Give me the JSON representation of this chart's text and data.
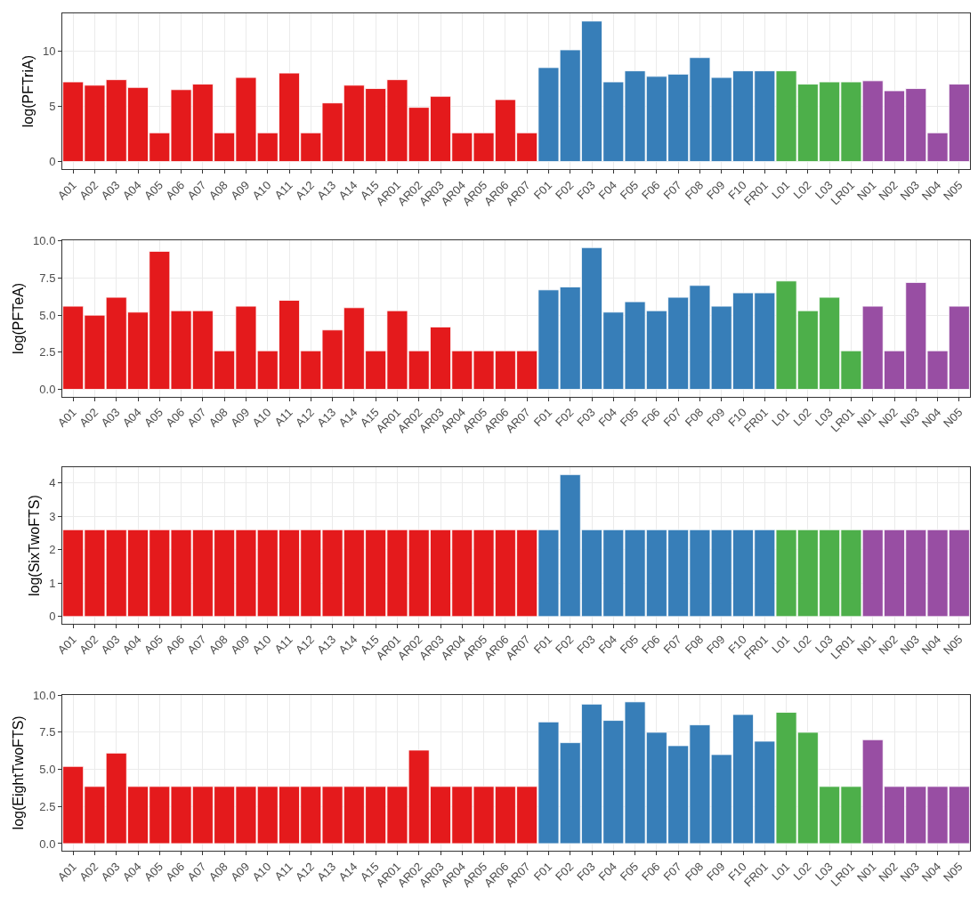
{
  "chart_data": [
    {
      "type": "bar",
      "ylabel": "log(PFTriA)",
      "grid": true,
      "ylim": [
        -0.7,
        13.4
      ],
      "yticks": [
        0,
        5,
        10
      ],
      "categories": [
        "A01",
        "A02",
        "A03",
        "A04",
        "A05",
        "A06",
        "A07",
        "A08",
        "A09",
        "A10",
        "A11",
        "A12",
        "A13",
        "A14",
        "A15",
        "AR01",
        "AR02",
        "AR03",
        "AR04",
        "AR05",
        "AR06",
        "AR07",
        "F01",
        "F02",
        "F03",
        "F04",
        "F05",
        "F06",
        "F07",
        "F08",
        "F09",
        "F10",
        "FR01",
        "L01",
        "L02",
        "L03",
        "LR01",
        "N01",
        "N02",
        "N03",
        "N04",
        "N05"
      ],
      "values": [
        7.2,
        6.9,
        7.4,
        6.7,
        2.6,
        6.5,
        7.0,
        2.6,
        7.6,
        2.6,
        8.0,
        2.6,
        5.3,
        6.9,
        6.6,
        7.4,
        4.9,
        5.9,
        2.6,
        2.6,
        5.6,
        2.6,
        8.5,
        10.1,
        12.7,
        7.2,
        8.2,
        7.7,
        7.9,
        9.4,
        7.6,
        8.2,
        8.2,
        8.2,
        7.0,
        7.2,
        7.2,
        7.3,
        6.4,
        6.6,
        2.6,
        7.0
      ],
      "colors": [
        "#e41a1c",
        "#e41a1c",
        "#e41a1c",
        "#e41a1c",
        "#e41a1c",
        "#e41a1c",
        "#e41a1c",
        "#e41a1c",
        "#e41a1c",
        "#e41a1c",
        "#e41a1c",
        "#e41a1c",
        "#e41a1c",
        "#e41a1c",
        "#e41a1c",
        "#e41a1c",
        "#e41a1c",
        "#e41a1c",
        "#e41a1c",
        "#e41a1c",
        "#e41a1c",
        "#e41a1c",
        "#377eb8",
        "#377eb8",
        "#377eb8",
        "#377eb8",
        "#377eb8",
        "#377eb8",
        "#377eb8",
        "#377eb8",
        "#377eb8",
        "#377eb8",
        "#377eb8",
        "#4daf4a",
        "#4daf4a",
        "#4daf4a",
        "#4daf4a",
        "#984ea3",
        "#984ea3",
        "#984ea3",
        "#984ea3",
        "#984ea3"
      ]
    },
    {
      "type": "bar",
      "ylabel": "log(PFTeA)",
      "grid": true,
      "ylim": [
        -0.48,
        10.03
      ],
      "yticks": [
        {
          "value": 0,
          "label": "0.0"
        },
        {
          "value": 2.5,
          "label": "2.5"
        },
        {
          "value": 5,
          "label": "5.0"
        },
        {
          "value": 7.5,
          "label": "7.5"
        },
        {
          "value": 10,
          "label": "10.0"
        }
      ],
      "categories": [
        "A01",
        "A02",
        "A03",
        "A04",
        "A05",
        "A06",
        "A07",
        "A08",
        "A09",
        "A10",
        "A11",
        "A12",
        "A13",
        "A14",
        "A15",
        "AR01",
        "AR02",
        "AR03",
        "AR04",
        "AR05",
        "AR06",
        "AR07",
        "F01",
        "F02",
        "F03",
        "F04",
        "F05",
        "F06",
        "F07",
        "F08",
        "F09",
        "F10",
        "FR01",
        "L01",
        "L02",
        "L03",
        "LR01",
        "N01",
        "N02",
        "N03",
        "N04",
        "N05"
      ],
      "values": [
        5.6,
        5.0,
        6.2,
        5.2,
        9.3,
        5.3,
        5.3,
        2.6,
        5.6,
        2.6,
        6.0,
        2.6,
        4.0,
        5.5,
        2.6,
        5.3,
        2.6,
        4.2,
        2.6,
        2.6,
        2.6,
        2.6,
        6.7,
        6.9,
        9.55,
        5.2,
        5.9,
        5.3,
        6.2,
        7.0,
        5.6,
        6.5,
        6.5,
        7.3,
        5.3,
        6.2,
        2.6,
        5.6,
        2.6,
        7.2,
        2.6,
        5.6
      ],
      "colors": [
        "#e41a1c",
        "#e41a1c",
        "#e41a1c",
        "#e41a1c",
        "#e41a1c",
        "#e41a1c",
        "#e41a1c",
        "#e41a1c",
        "#e41a1c",
        "#e41a1c",
        "#e41a1c",
        "#e41a1c",
        "#e41a1c",
        "#e41a1c",
        "#e41a1c",
        "#e41a1c",
        "#e41a1c",
        "#e41a1c",
        "#e41a1c",
        "#e41a1c",
        "#e41a1c",
        "#e41a1c",
        "#377eb8",
        "#377eb8",
        "#377eb8",
        "#377eb8",
        "#377eb8",
        "#377eb8",
        "#377eb8",
        "#377eb8",
        "#377eb8",
        "#377eb8",
        "#377eb8",
        "#4daf4a",
        "#4daf4a",
        "#4daf4a",
        "#4daf4a",
        "#984ea3",
        "#984ea3",
        "#984ea3",
        "#984ea3",
        "#984ea3"
      ]
    },
    {
      "type": "bar",
      "ylabel": "log(SixTwoFTS)",
      "grid": true,
      "ylim": [
        -0.21,
        4.46
      ],
      "yticks": [
        0,
        1,
        2,
        3,
        4
      ],
      "categories": [
        "A01",
        "A02",
        "A03",
        "A04",
        "A05",
        "A06",
        "A07",
        "A08",
        "A09",
        "A10",
        "A11",
        "A12",
        "A13",
        "A14",
        "A15",
        "AR01",
        "AR02",
        "AR03",
        "AR04",
        "AR05",
        "AR06",
        "AR07",
        "F01",
        "F02",
        "F03",
        "F04",
        "F05",
        "F06",
        "F07",
        "F08",
        "F09",
        "F10",
        "FR01",
        "L01",
        "L02",
        "L03",
        "LR01",
        "N01",
        "N02",
        "N03",
        "N04",
        "N05"
      ],
      "values": [
        2.6,
        2.6,
        2.6,
        2.6,
        2.6,
        2.6,
        2.6,
        2.6,
        2.6,
        2.6,
        2.6,
        2.6,
        2.6,
        2.6,
        2.6,
        2.6,
        2.6,
        2.6,
        2.6,
        2.6,
        2.6,
        2.6,
        2.6,
        4.25,
        2.6,
        2.6,
        2.6,
        2.6,
        2.6,
        2.6,
        2.6,
        2.6,
        2.6,
        2.6,
        2.6,
        2.6,
        2.6,
        2.6,
        2.6,
        2.6,
        2.6,
        2.6
      ],
      "colors": [
        "#e41a1c",
        "#e41a1c",
        "#e41a1c",
        "#e41a1c",
        "#e41a1c",
        "#e41a1c",
        "#e41a1c",
        "#e41a1c",
        "#e41a1c",
        "#e41a1c",
        "#e41a1c",
        "#e41a1c",
        "#e41a1c",
        "#e41a1c",
        "#e41a1c",
        "#e41a1c",
        "#e41a1c",
        "#e41a1c",
        "#e41a1c",
        "#e41a1c",
        "#e41a1c",
        "#e41a1c",
        "#377eb8",
        "#377eb8",
        "#377eb8",
        "#377eb8",
        "#377eb8",
        "#377eb8",
        "#377eb8",
        "#377eb8",
        "#377eb8",
        "#377eb8",
        "#377eb8",
        "#4daf4a",
        "#4daf4a",
        "#4daf4a",
        "#4daf4a",
        "#984ea3",
        "#984ea3",
        "#984ea3",
        "#984ea3",
        "#984ea3"
      ]
    },
    {
      "type": "bar",
      "ylabel": "log(EightTwoFTS)",
      "grid": true,
      "ylim": [
        -0.48,
        10.03
      ],
      "yticks": [
        {
          "value": 0,
          "label": "0.0"
        },
        {
          "value": 2.5,
          "label": "2.5"
        },
        {
          "value": 5,
          "label": "5.0"
        },
        {
          "value": 7.5,
          "label": "7.5"
        },
        {
          "value": 10,
          "label": "10.0"
        }
      ],
      "categories": [
        "A01",
        "A02",
        "A03",
        "A04",
        "A05",
        "A06",
        "A07",
        "A08",
        "A09",
        "A10",
        "A11",
        "A12",
        "A13",
        "A14",
        "A15",
        "AR01",
        "AR02",
        "AR03",
        "AR04",
        "AR05",
        "AR06",
        "AR07",
        "F01",
        "F02",
        "F03",
        "F04",
        "F05",
        "F06",
        "F07",
        "F08",
        "F09",
        "F10",
        "FR01",
        "L01",
        "L02",
        "L03",
        "LR01",
        "N01",
        "N02",
        "N03",
        "N04",
        "N05"
      ],
      "values": [
        5.2,
        3.85,
        6.1,
        3.85,
        3.85,
        3.85,
        3.85,
        3.85,
        3.85,
        3.85,
        3.85,
        3.85,
        3.85,
        3.85,
        3.85,
        3.85,
        6.3,
        3.85,
        3.85,
        3.85,
        3.85,
        3.85,
        8.2,
        6.8,
        9.4,
        8.3,
        9.55,
        7.5,
        6.6,
        8.0,
        6.0,
        8.7,
        6.9,
        8.85,
        7.5,
        3.85,
        3.85,
        7.0,
        3.85,
        3.85,
        3.85,
        3.85
      ],
      "colors": [
        "#e41a1c",
        "#e41a1c",
        "#e41a1c",
        "#e41a1c",
        "#e41a1c",
        "#e41a1c",
        "#e41a1c",
        "#e41a1c",
        "#e41a1c",
        "#e41a1c",
        "#e41a1c",
        "#e41a1c",
        "#e41a1c",
        "#e41a1c",
        "#e41a1c",
        "#e41a1c",
        "#e41a1c",
        "#e41a1c",
        "#e41a1c",
        "#e41a1c",
        "#e41a1c",
        "#e41a1c",
        "#377eb8",
        "#377eb8",
        "#377eb8",
        "#377eb8",
        "#377eb8",
        "#377eb8",
        "#377eb8",
        "#377eb8",
        "#377eb8",
        "#377eb8",
        "#377eb8",
        "#4daf4a",
        "#4daf4a",
        "#4daf4a",
        "#4daf4a",
        "#984ea3",
        "#984ea3",
        "#984ea3",
        "#984ea3",
        "#984ea3"
      ]
    }
  ]
}
